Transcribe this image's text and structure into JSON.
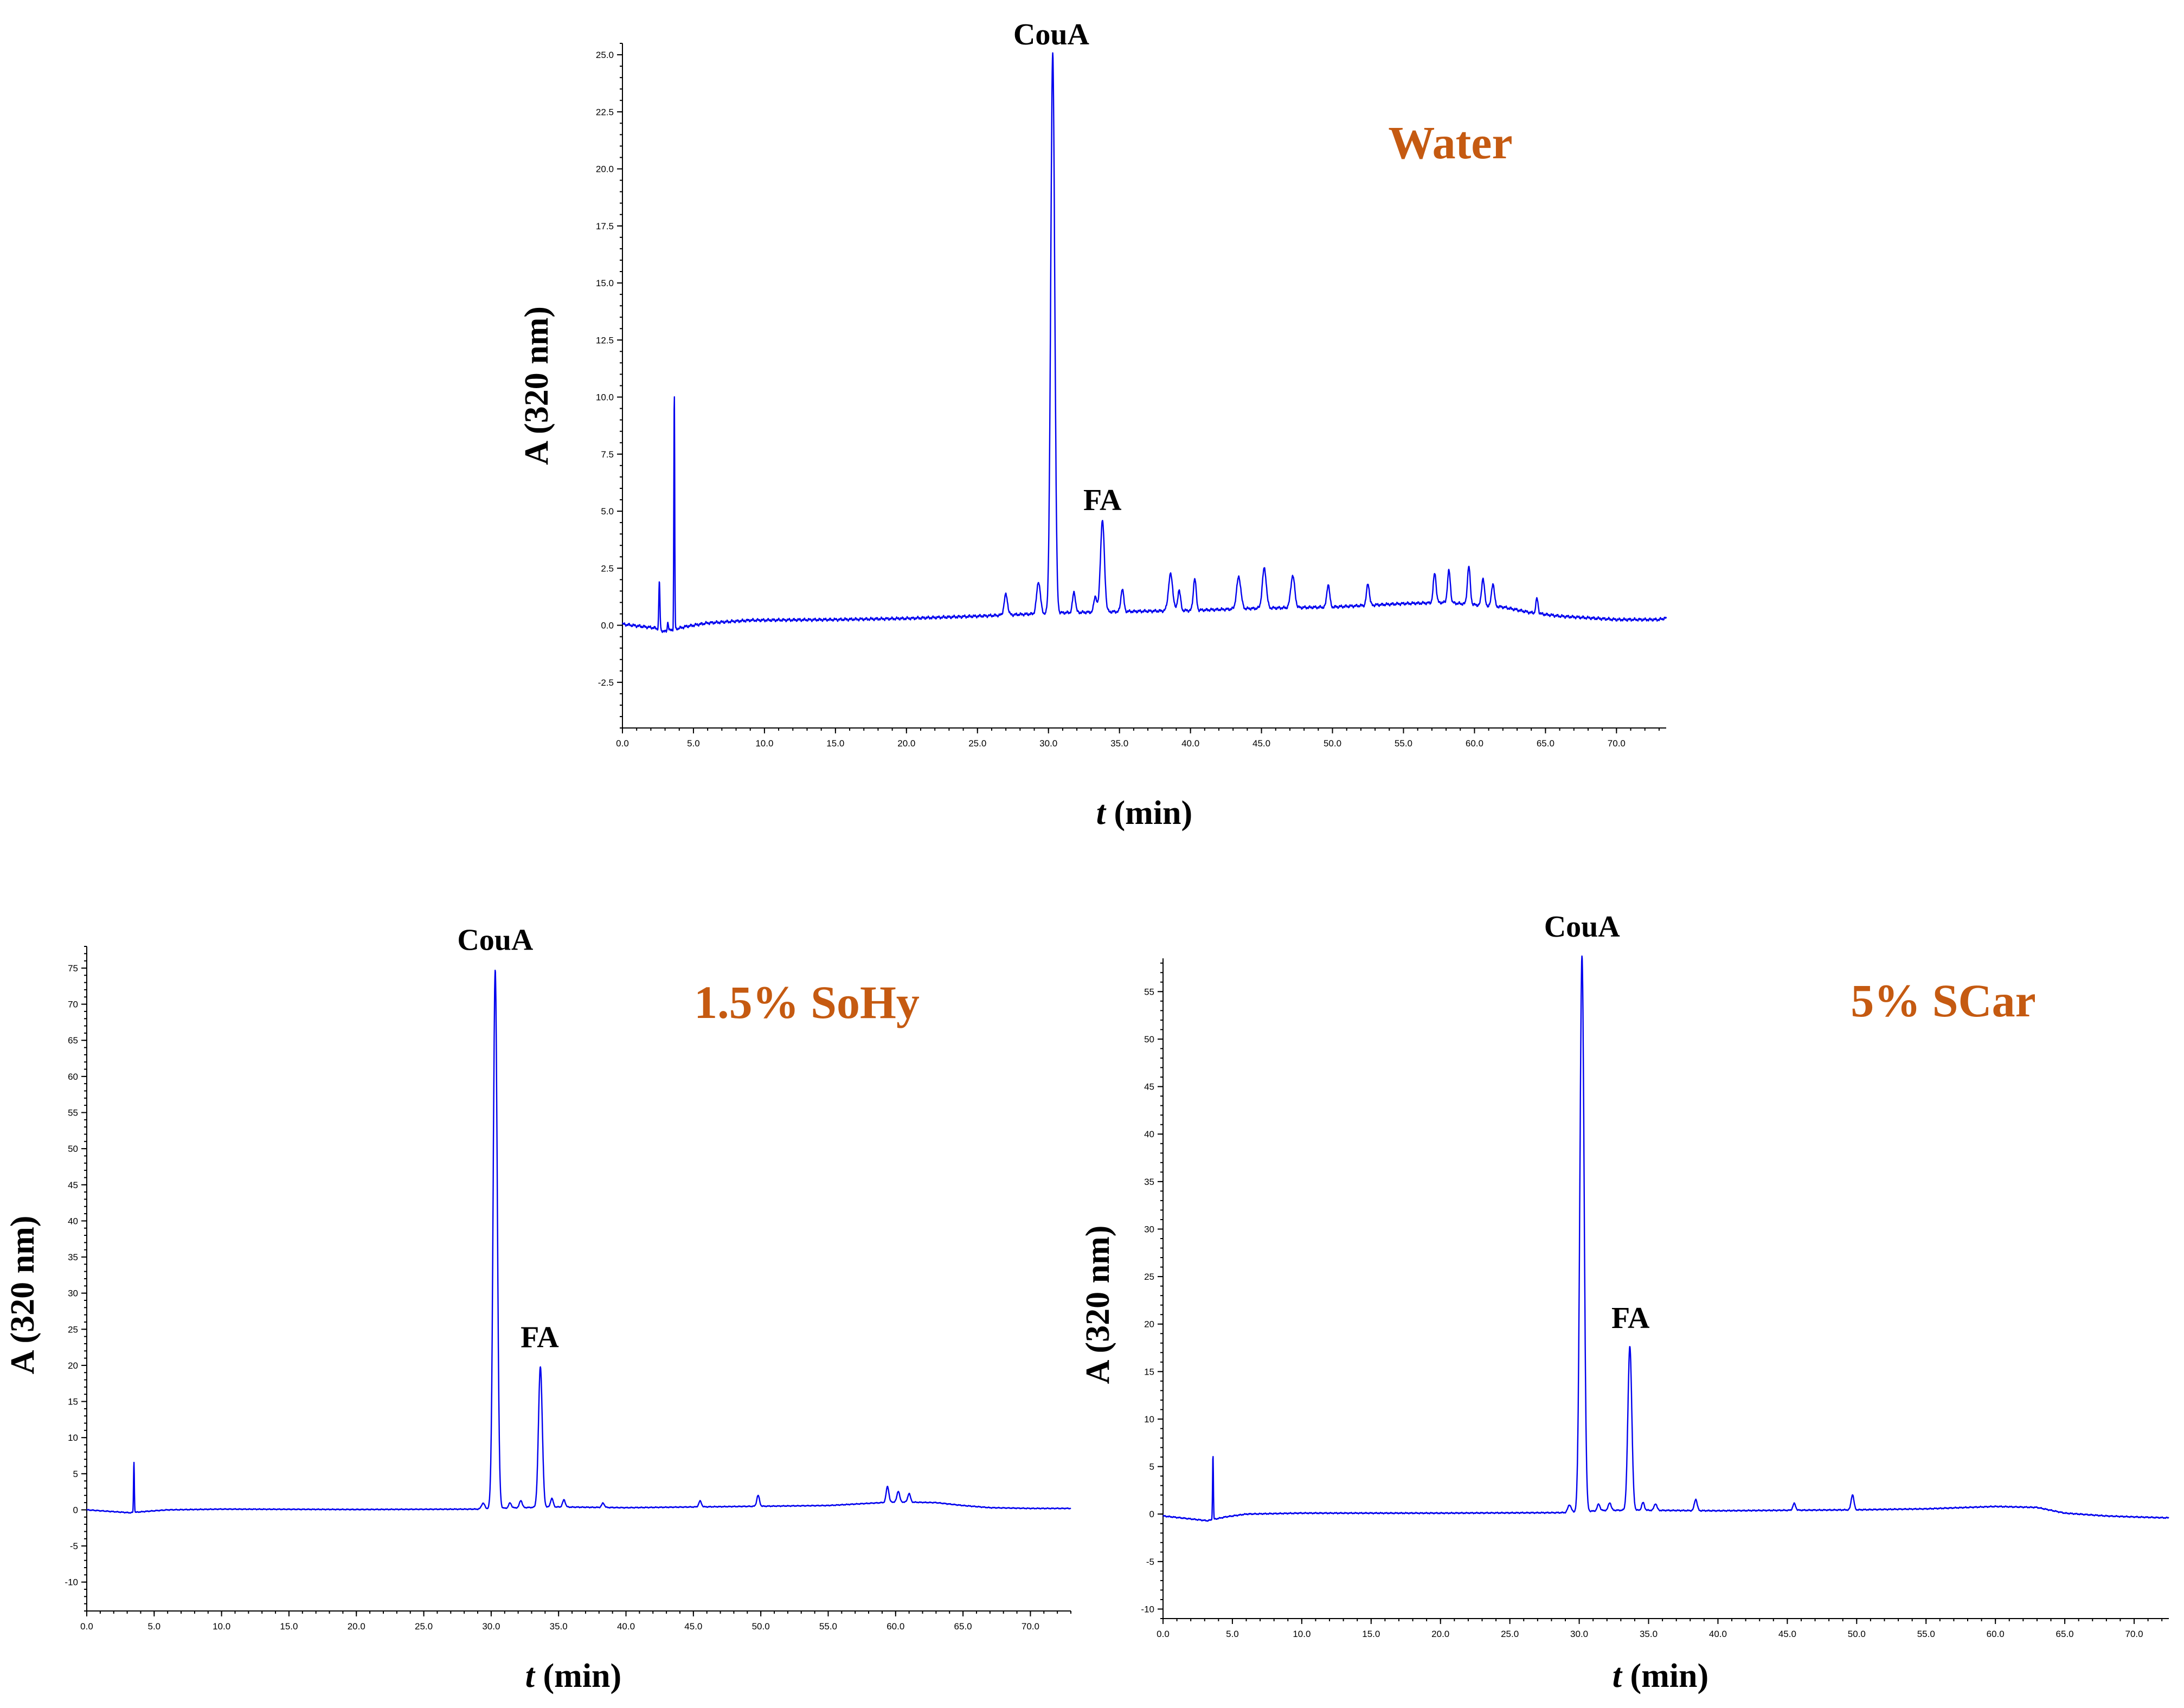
{
  "figure": {
    "trace_color": "#0000ee",
    "condition_color": "#c55a11"
  },
  "chart_data": [
    {
      "type": "line",
      "title": "Water",
      "xlabel_italic": "t",
      "xlabel_rest": " (min)",
      "ylabel": "A (320 nm)",
      "xlim": [
        0,
        73.5
      ],
      "ylim": [
        -4.5,
        25.5
      ],
      "xticks": [
        0,
        5,
        10,
        15,
        20,
        25,
        30,
        35,
        40,
        45,
        50,
        55,
        60,
        65,
        70
      ],
      "xtick_labels": [
        "0.0",
        "5.0",
        "10.0",
        "15.0",
        "20.0",
        "25.0",
        "30.0",
        "35.0",
        "40.0",
        "45.0",
        "50.0",
        "55.0",
        "60.0",
        "65.0",
        "70.0"
      ],
      "yticks": [
        -2.5,
        0,
        2.5,
        5,
        7.5,
        10,
        12.5,
        15,
        17.5,
        20,
        22.5,
        25
      ],
      "ytick_labels": [
        "-2.5",
        "0.0",
        "2.5",
        "5.0",
        "7.5",
        "10.0",
        "12.5",
        "15.0",
        "17.5",
        "20.0",
        "22.5",
        "25.0"
      ],
      "annotations": [
        {
          "text": "CouA",
          "x": 30.2,
          "y": 24.5
        },
        {
          "text": "FA",
          "x": 33.8,
          "y": 4.1
        }
      ],
      "series": [
        {
          "name": "Water",
          "baseline": [
            [
              0,
              0.05
            ],
            [
              2.3,
              -0.12
            ],
            [
              3.0,
              -0.28
            ],
            [
              4.5,
              -0.05
            ],
            [
              6,
              0.1
            ],
            [
              9,
              0.22
            ],
            [
              15,
              0.25
            ],
            [
              20,
              0.3
            ],
            [
              25,
              0.4
            ],
            [
              29,
              0.5
            ],
            [
              31,
              0.55
            ],
            [
              35,
              0.6
            ],
            [
              40,
              0.65
            ],
            [
              45,
              0.75
            ],
            [
              50,
              0.8
            ],
            [
              55,
              0.95
            ],
            [
              58,
              1.0
            ],
            [
              62,
              0.8
            ],
            [
              64,
              0.55
            ],
            [
              66,
              0.4
            ],
            [
              70,
              0.25
            ],
            [
              73,
              0.25
            ],
            [
              73.5,
              0.32
            ]
          ],
          "peaks": [
            [
              2.6,
              2.1,
              0.04
            ],
            [
              3.2,
              0.4,
              0.04
            ],
            [
              3.65,
              10.4,
              0.03
            ],
            [
              27.0,
              0.9,
              0.12
            ],
            [
              29.3,
              1.4,
              0.13
            ],
            [
              30.3,
              24.5,
              0.14
            ],
            [
              31.8,
              0.9,
              0.1
            ],
            [
              33.3,
              0.7,
              0.1
            ],
            [
              33.8,
              4.0,
              0.14
            ],
            [
              35.2,
              1.0,
              0.1
            ],
            [
              38.6,
              1.6,
              0.15
            ],
            [
              39.2,
              0.9,
              0.1
            ],
            [
              40.3,
              1.4,
              0.1
            ],
            [
              43.4,
              1.4,
              0.15
            ],
            [
              45.2,
              1.75,
              0.14
            ],
            [
              47.2,
              1.4,
              0.14
            ],
            [
              49.7,
              1.0,
              0.1
            ],
            [
              52.5,
              0.95,
              0.1
            ],
            [
              57.2,
              1.3,
              0.1
            ],
            [
              58.2,
              1.4,
              0.1
            ],
            [
              59.6,
              1.65,
              0.1
            ],
            [
              60.6,
              1.2,
              0.1
            ],
            [
              61.3,
              1.0,
              0.1
            ],
            [
              64.4,
              0.65,
              0.08
            ]
          ]
        }
      ]
    },
    {
      "type": "line",
      "title": "1.5% SoHy",
      "xlabel_italic": "t",
      "xlabel_rest": " (min)",
      "ylabel": "A (320 nm)",
      "xlim": [
        0,
        73
      ],
      "ylim": [
        -14,
        78
      ],
      "xticks": [
        0,
        5,
        10,
        15,
        20,
        25,
        30,
        35,
        40,
        45,
        50,
        55,
        60,
        65,
        70
      ],
      "xtick_labels": [
        "0.0",
        "5.0",
        "10.0",
        "15.0",
        "20.0",
        "25.0",
        "30.0",
        "35.0",
        "40.0",
        "45.0",
        "50.0",
        "55.0",
        "60.0",
        "65.0",
        "70.0"
      ],
      "yticks": [
        -10,
        -5,
        0,
        5,
        10,
        15,
        20,
        25,
        30,
        35,
        40,
        45,
        50,
        55,
        60,
        65,
        70,
        75
      ],
      "ytick_labels": [
        "-10",
        "-5",
        "0",
        "5",
        "10",
        "15",
        "20",
        "25",
        "30",
        "35",
        "40",
        "45",
        "50",
        "55",
        "60",
        "65",
        "70",
        "75"
      ],
      "annotations": [
        {
          "text": "CouA",
          "x": 30.3,
          "y": 74.5
        },
        {
          "text": "FA",
          "x": 33.6,
          "y": 19.5
        }
      ],
      "series": [
        {
          "name": "1.5% SoHy",
          "baseline": [
            [
              0,
              0
            ],
            [
              3.2,
              -0.4
            ],
            [
              4.5,
              -0.2
            ],
            [
              6,
              0
            ],
            [
              10,
              0.1
            ],
            [
              20,
              0.05
            ],
            [
              29,
              0.1
            ],
            [
              32,
              0.3
            ],
            [
              35,
              0.4
            ],
            [
              40,
              0.3
            ],
            [
              45,
              0.4
            ],
            [
              50,
              0.5
            ],
            [
              55,
              0.6
            ],
            [
              58,
              0.9
            ],
            [
              60,
              1.1
            ],
            [
              63,
              1.0
            ],
            [
              65,
              0.6
            ],
            [
              67,
              0.3
            ],
            [
              70,
              0.2
            ],
            [
              73,
              0.2
            ]
          ],
          "peaks": [
            [
              3.5,
              7.0,
              0.03
            ],
            [
              29.4,
              0.8,
              0.12
            ],
            [
              30.3,
              74.5,
              0.15
            ],
            [
              31.4,
              0.7,
              0.1
            ],
            [
              32.2,
              1.0,
              0.1
            ],
            [
              33.65,
              19.5,
              0.14
            ],
            [
              34.5,
              1.2,
              0.1
            ],
            [
              35.4,
              1.0,
              0.1
            ],
            [
              38.3,
              0.6,
              0.1
            ],
            [
              45.5,
              0.8,
              0.1
            ],
            [
              49.8,
              1.5,
              0.1
            ],
            [
              59.4,
              2.2,
              0.1
            ],
            [
              60.2,
              1.5,
              0.1
            ],
            [
              61.0,
              1.2,
              0.1
            ]
          ]
        }
      ]
    },
    {
      "type": "line",
      "title": "5% SCar",
      "xlabel_italic": "t",
      "xlabel_rest": " (min)",
      "ylabel": "A (320 nm)",
      "xlim": [
        0,
        72.5
      ],
      "ylim": [
        -11,
        58.5
      ],
      "xticks": [
        0,
        5,
        10,
        15,
        20,
        25,
        30,
        35,
        40,
        45,
        50,
        55,
        60,
        65,
        70
      ],
      "xtick_labels": [
        "0.0",
        "5.0",
        "10.0",
        "15.0",
        "20.0",
        "25.0",
        "30.0",
        "35.0",
        "40.0",
        "45.0",
        "50.0",
        "55.0",
        "60.0",
        "65.0",
        "70.0"
      ],
      "yticks": [
        -10,
        -5,
        0,
        5,
        10,
        15,
        20,
        25,
        30,
        35,
        40,
        45,
        50,
        55
      ],
      "ytick_labels": [
        "-10",
        "-5",
        "0",
        "5",
        "10",
        "15",
        "20",
        "25",
        "30",
        "35",
        "40",
        "45",
        "50",
        "55"
      ],
      "annotations": [
        {
          "text": "CouA",
          "x": 30.2,
          "y": 58.5
        },
        {
          "text": "FA",
          "x": 33.7,
          "y": 17.3
        }
      ],
      "series": [
        {
          "name": "5% SCar",
          "baseline": [
            [
              0,
              -0.2
            ],
            [
              3.2,
              -0.7
            ],
            [
              4.5,
              -0.3
            ],
            [
              6,
              0
            ],
            [
              10,
              0.1
            ],
            [
              20,
              0.1
            ],
            [
              29,
              0.15
            ],
            [
              32,
              0.4
            ],
            [
              35,
              0.4
            ],
            [
              40,
              0.35
            ],
            [
              45,
              0.4
            ],
            [
              50,
              0.45
            ],
            [
              55,
              0.55
            ],
            [
              58,
              0.7
            ],
            [
              60,
              0.8
            ],
            [
              63,
              0.7
            ],
            [
              65,
              0.1
            ],
            [
              68,
              -0.2
            ],
            [
              70,
              -0.3
            ],
            [
              72.5,
              -0.4
            ]
          ],
          "peaks": [
            [
              3.6,
              6.8,
              0.03
            ],
            [
              29.3,
              0.8,
              0.12
            ],
            [
              30.2,
              58.5,
              0.15
            ],
            [
              31.4,
              0.7,
              0.1
            ],
            [
              32.2,
              0.8,
              0.1
            ],
            [
              33.65,
              17.3,
              0.14
            ],
            [
              34.6,
              0.8,
              0.1
            ],
            [
              35.5,
              0.7,
              0.1
            ],
            [
              38.4,
              1.2,
              0.1
            ],
            [
              45.5,
              0.7,
              0.1
            ],
            [
              49.7,
              1.6,
              0.1
            ]
          ]
        }
      ]
    }
  ]
}
